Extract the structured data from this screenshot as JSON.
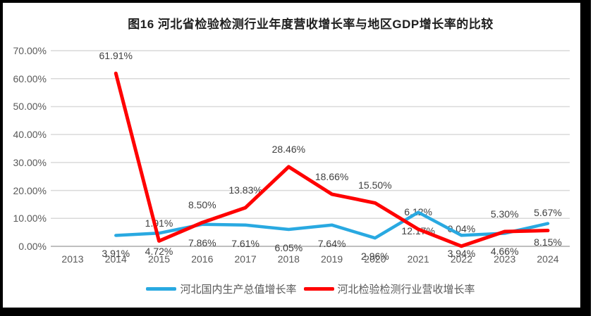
{
  "window": {
    "background_color": "#ffffff",
    "border_color": "#000000"
  },
  "chart_data": {
    "type": "line",
    "title": "图16 河北省检验检测行业年度营收增长率与地区GDP增长率的比较",
    "categories": [
      "2013",
      "2014",
      "2015",
      "2016",
      "2017",
      "2018",
      "2019",
      "2020",
      "2021",
      "2022",
      "2023",
      "2024"
    ],
    "series": [
      {
        "name": "河北国内生产总值增长率",
        "color": "#29A9E1",
        "values": [
          null,
          3.91,
          4.72,
          7.86,
          7.61,
          6.05,
          7.64,
          2.96,
          12.17,
          3.94,
          4.66,
          8.15
        ],
        "data_label_position": "below",
        "line_width": 4.5
      },
      {
        "name": "河北检验检测行业营收增长率",
        "color": "#FF0000",
        "values": [
          null,
          61.91,
          1.91,
          8.5,
          13.83,
          28.46,
          18.66,
          15.5,
          6.12,
          0.04,
          5.3,
          5.67
        ],
        "data_label_position": "above",
        "line_width": 5
      }
    ],
    "y_axis": {
      "min": 0,
      "max": 70,
      "step": 10,
      "tick_labels": [
        "0.00%",
        "10.00%",
        "20.00%",
        "30.00%",
        "40.00%",
        "50.00%",
        "60.00%",
        "70.00%"
      ]
    },
    "x_axis": {
      "tick_labels": [
        "2013",
        "2014",
        "2015",
        "2016",
        "2017",
        "2018",
        "2019",
        "2020",
        "2021",
        "2022",
        "2023",
        "2024"
      ]
    },
    "data_label_format": "0.00%",
    "grid": true,
    "legend_position": "bottom"
  },
  "colors": {
    "gridline": "#D9D9D9",
    "axis_line": "#BFBFBF",
    "tick_text": "#595959",
    "data_label_text": "#404040",
    "legend_text": "#595959",
    "title_text": "#1F1F1F"
  }
}
